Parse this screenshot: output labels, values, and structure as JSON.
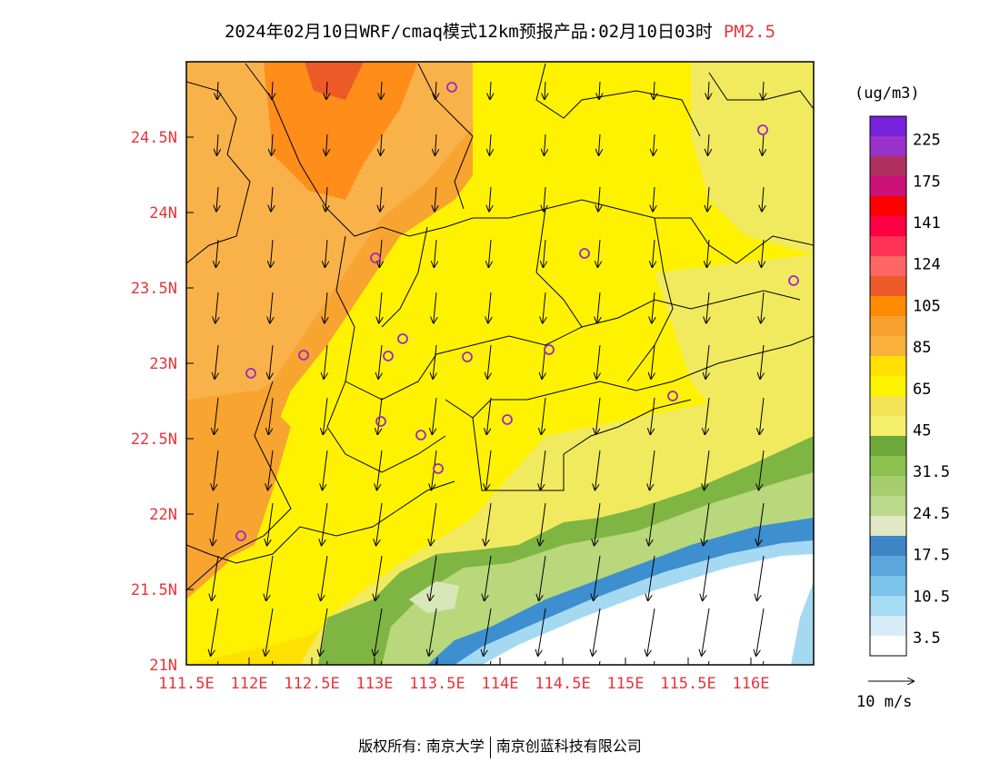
{
  "title": {
    "main": "2024年02月10日WRF/cmaq模式12km预报产品:02月10日03时",
    "species": "PM2.5"
  },
  "axes": {
    "lon_labels": [
      "111.5E",
      "112E",
      "112.5E",
      "113E",
      "113.5E",
      "114E",
      "114.5E",
      "115E",
      "115.5E",
      "116E"
    ],
    "lat_labels": [
      "21N",
      "21.5N",
      "22N",
      "22.5N",
      "23N",
      "23.5N",
      "24N",
      "24.5N"
    ]
  },
  "colorbar": {
    "unit": "(ug/m3)",
    "levels": [
      "3.5",
      "10.5",
      "17.5",
      "24.5",
      "31.5",
      "45",
      "65",
      "85",
      "105",
      "124",
      "141",
      "175",
      "225"
    ],
    "colors": [
      "#ffffff",
      "#d7ecf8",
      "#a6dcf3",
      "#7cc3ea",
      "#5ba6dc",
      "#3e86c6",
      "#dfe8c2",
      "#bbd98a",
      "#a7ce6e",
      "#8cc04f",
      "#6ea83a",
      "#f3f06a",
      "#f2e356",
      "#fff400",
      "#ffe000",
      "#f8b13b",
      "#f6a12e",
      "#ff8b00",
      "#ed5a28",
      "#ff6666",
      "#ff3355",
      "#ff0044",
      "#ff0000",
      "#cc1177",
      "#b03060",
      "#9933cc",
      "#7722dd"
    ]
  },
  "wind_legend": {
    "label": "10 m/s"
  },
  "copyright": {
    "left": "版权所有: 南京大学",
    "right": "南京创蓝科技有限公司"
  },
  "colors": {
    "orange": "#f7a431",
    "light_orange": "#f9b24a",
    "dark_orange": "#ff8d1a",
    "yellow": "#fff200",
    "gold": "#ffe100",
    "pale_yellow": "#f1ea5e",
    "green": "#7fb542",
    "light_green": "#b9d77b",
    "pale_green": "#d8e7b9",
    "blue": "#3e8fcf",
    "light_blue": "#a5d9f2",
    "white": "#ffffff",
    "station": "#9b28c8",
    "label": "#e8333b"
  }
}
